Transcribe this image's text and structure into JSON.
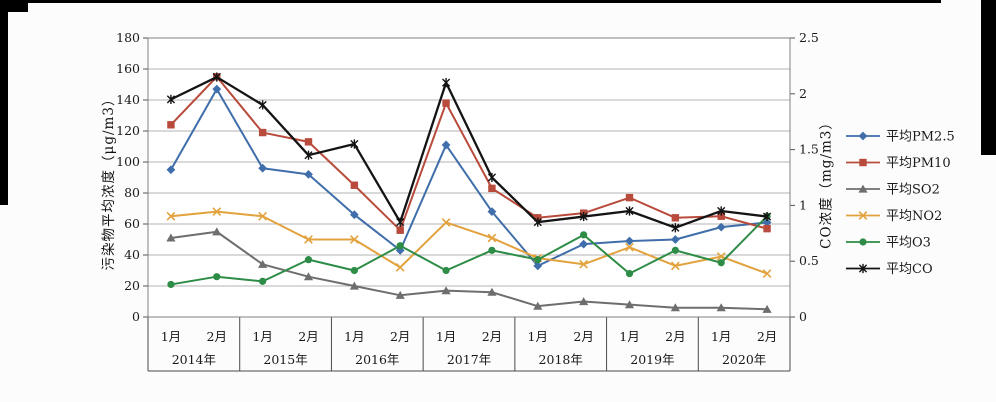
{
  "figure": {
    "left_axis": {
      "title": "污染物平均浓度（μg/m3）",
      "min": 0,
      "max": 180,
      "ticks": [
        0,
        20,
        40,
        60,
        80,
        100,
        120,
        140,
        160,
        180
      ]
    },
    "right_axis": {
      "title": "CO浓度（mg/m3）",
      "min": 0,
      "max": 2.5,
      "ticks": [
        0,
        0.5,
        1,
        1.5,
        2,
        2.5
      ],
      "tick_labels": [
        "0",
        "0.5",
        "1",
        "1.5",
        "2",
        "2.5"
      ]
    },
    "x_axis": {
      "month_labels": [
        "1月",
        "2月"
      ],
      "year_labels": [
        "2014年",
        "2015年",
        "2016年",
        "2017年",
        "2018年",
        "2019年",
        "2020年"
      ]
    }
  },
  "chart_data": {
    "type": "line",
    "x_categories": [
      "2014年1月",
      "2014年2月",
      "2015年1月",
      "2015年2月",
      "2016年1月",
      "2016年2月",
      "2017年1月",
      "2017年2月",
      "2018年1月",
      "2018年2月",
      "2019年1月",
      "2019年2月",
      "2020年1月",
      "2020年2月"
    ],
    "left_ylabel": "污染物平均浓度（μg/m3）",
    "right_ylabel": "CO浓度（mg/m3）",
    "left_ylim": [
      0,
      180
    ],
    "right_ylim": [
      0,
      2.5
    ],
    "grid": true,
    "legend_position": "right",
    "series": [
      {
        "key": "pm25",
        "name": "平均PM2.5",
        "color": "#3f6eaa",
        "marker": "diamond",
        "axis": "left",
        "values": [
          95,
          147,
          96,
          92,
          66,
          43,
          111,
          68,
          33,
          47,
          49,
          50,
          58,
          61
        ]
      },
      {
        "key": "pm10",
        "name": "平均PM10",
        "color": "#b94b3c",
        "marker": "square",
        "axis": "left",
        "values": [
          124,
          155,
          119,
          113,
          85,
          56,
          138,
          83,
          64,
          67,
          77,
          64,
          65,
          57
        ]
      },
      {
        "key": "so2",
        "name": "平均SO2",
        "color": "#6e6e6e",
        "marker": "triangle",
        "axis": "left",
        "values": [
          51,
          55,
          34,
          26,
          20,
          14,
          17,
          16,
          7,
          10,
          8,
          6,
          6,
          5
        ]
      },
      {
        "key": "no2",
        "name": "平均NO2",
        "color": "#e2a23d",
        "marker": "x",
        "axis": "left",
        "values": [
          65,
          68,
          65,
          50,
          50,
          32,
          61,
          51,
          38,
          34,
          45,
          33,
          39,
          28
        ]
      },
      {
        "key": "o3",
        "name": "平均O3",
        "color": "#2d8c46",
        "marker": "circle",
        "axis": "left",
        "values": [
          21,
          26,
          23,
          37,
          30,
          46,
          30,
          43,
          37,
          53,
          28,
          43,
          35,
          65
        ]
      },
      {
        "key": "co",
        "name": "平均CO",
        "color": "#141414",
        "marker": "star",
        "axis": "right",
        "values": [
          1.95,
          2.15,
          1.9,
          1.45,
          1.55,
          0.85,
          2.1,
          1.25,
          0.85,
          0.9,
          0.95,
          0.8,
          0.95,
          0.9
        ]
      }
    ]
  }
}
